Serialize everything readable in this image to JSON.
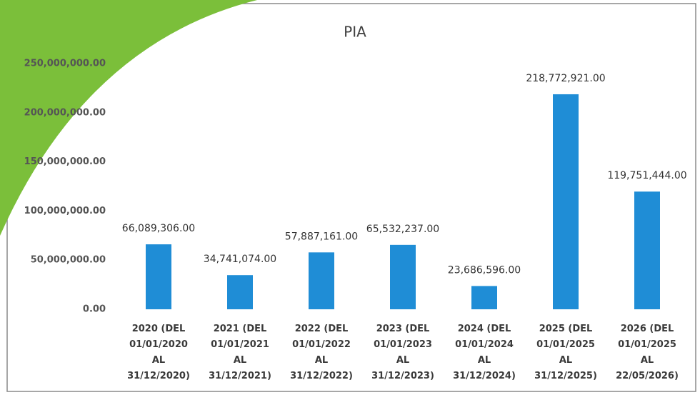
{
  "chart_data": {
    "type": "bar",
    "title": "PIA",
    "categories": [
      "2020 (DEL\n01/01/2020\nAL\n31/12/2020)",
      "2021 (DEL\n01/01/2021\nAL\n31/12/2021)",
      "2022 (DEL\n01/01/2022\nAL\n31/12/2022)",
      "2023 (DEL\n01/01/2023\nAL\n31/12/2023)",
      "2024 (DEL\n01/01/2024\nAL\n31/12/2024)",
      "2025 (DEL\n01/01/2025\nAL\n31/12/2025)",
      "2026 (DEL\n01/01/2025\nAL\n22/05/2026)"
    ],
    "values": [
      66089306,
      34741074,
      57887161,
      65532237,
      23686596,
      218772921,
      119751444
    ],
    "value_labels": [
      "66,089,306.00",
      "34,741,074.00",
      "57,887,161.00",
      "65,532,237.00",
      "23,686,596.00",
      "218,772,921.00",
      "119,751,444.00"
    ],
    "color": "#1f8dd6",
    "ylim": [
      0,
      250000000
    ],
    "yticks": [
      {
        "value": 0,
        "label": "0.00"
      },
      {
        "value": 50000000,
        "label": "50,000,000.00"
      },
      {
        "value": 100000000,
        "label": "100,000,000.00"
      },
      {
        "value": 150000000,
        "label": "150,000,000.00"
      },
      {
        "value": 200000000,
        "label": "200,000,000.00"
      },
      {
        "value": 250000000,
        "label": "250,000,000.00"
      }
    ],
    "grid": false
  }
}
